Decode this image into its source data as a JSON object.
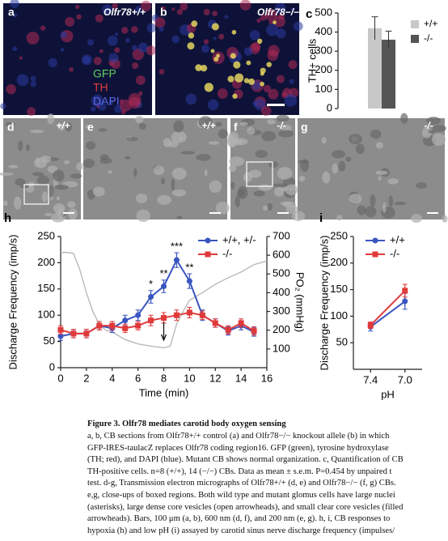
{
  "panels": [
    {
      "letter": "a",
      "label": "Olfr78+/+"
    },
    {
      "letter": "b",
      "label": "Olfr78−/−"
    },
    {
      "letter": "d",
      "label": "+/+"
    },
    {
      "letter": "e",
      "label": "+/+"
    },
    {
      "letter": "f",
      "label": "-/-"
    },
    {
      "letter": "g",
      "label": "-/-"
    }
  ],
  "stain_legend": [
    {
      "text": "GFP",
      "color": "#5fd05f"
    },
    {
      "text": "TH",
      "color": "#e03a3a"
    },
    {
      "text": "DAPI",
      "color": "#5a6ae8"
    }
  ],
  "chart_data": [
    {
      "type": "bar",
      "panel": "c",
      "ylabel": "TH+ cells",
      "ylim": [
        0,
        500
      ],
      "yticks": [
        0,
        100,
        200,
        300,
        400,
        500
      ],
      "series": [
        {
          "name": "+/+",
          "color": "#c8c8c8",
          "values": [
            420
          ],
          "errors": [
            60
          ]
        },
        {
          "name": "-/-",
          "color": "#555555",
          "values": [
            360
          ],
          "errors": [
            45
          ]
        }
      ]
    },
    {
      "type": "line",
      "panel": "h",
      "xlabel": "Time (min)",
      "ylabel": "Discharge Frequency (imp/s)",
      "y2label": "PO₂ (mmHg)",
      "x": [
        0,
        1,
        2,
        3,
        4,
        5,
        6,
        7,
        8,
        9,
        10,
        11,
        12,
        13,
        14,
        15
      ],
      "xlim": [
        0,
        16
      ],
      "xticks": [
        0,
        2,
        4,
        6,
        8,
        10,
        12,
        14,
        16
      ],
      "ylim": [
        0,
        250
      ],
      "yticks": [
        0,
        50,
        100,
        150,
        200,
        250
      ],
      "y2lim": [
        0,
        700
      ],
      "y2ticks": [
        100,
        200,
        300,
        400,
        500,
        600,
        700
      ],
      "series": [
        {
          "name": "+/+, +/-",
          "color": "#3a55c0",
          "marker": "circle",
          "values": [
            60,
            65,
            65,
            80,
            75,
            90,
            100,
            135,
            155,
            205,
            165,
            100,
            85,
            70,
            80,
            68
          ],
          "errors": [
            8,
            8,
            8,
            8,
            8,
            10,
            10,
            12,
            12,
            14,
            14,
            10,
            8,
            8,
            8,
            8
          ]
        },
        {
          "name": "-/-",
          "color": "#e03a3a",
          "marker": "square",
          "values": [
            72,
            65,
            65,
            80,
            80,
            75,
            80,
            90,
            95,
            100,
            105,
            100,
            85,
            72,
            85,
            70
          ],
          "errors": [
            8,
            8,
            8,
            8,
            8,
            8,
            8,
            10,
            10,
            10,
            10,
            8,
            8,
            8,
            8,
            8
          ]
        },
        {
          "color": "#b4b4b4",
          "axis": "y2",
          "x": [
            0,
            0.5,
            1,
            1.5,
            2,
            2.5,
            3,
            3.5,
            4,
            5,
            6,
            7,
            8,
            8.5,
            9,
            9.5,
            10,
            11,
            12,
            13,
            14,
            15,
            16
          ],
          "values": [
            615,
            615,
            610,
            520,
            400,
            300,
            230,
            200,
            190,
            150,
            127,
            115,
            106,
            115,
            233,
            300,
            360,
            400,
            445,
            480,
            510,
            550,
            570
          ]
        }
      ],
      "annotations": [
        {
          "text": "*",
          "x": 7
        },
        {
          "text": "**",
          "x": 8
        },
        {
          "text": "***",
          "x": 9
        },
        {
          "text": "**",
          "x": 10
        }
      ]
    },
    {
      "type": "line",
      "panel": "i",
      "xlabel": "pH",
      "ylabel": "Discharge Frequency (imp/s)",
      "categories": [
        "7.4",
        "7.0"
      ],
      "ylim": [
        0,
        250
      ],
      "yticks": [
        50,
        100,
        150,
        200,
        250
      ],
      "series": [
        {
          "name": "+/+",
          "color": "#3a55c0",
          "marker": "circle",
          "values": [
            80,
            128
          ],
          "errors": [
            8,
            15
          ]
        },
        {
          "name": "-/-",
          "color": "#e03a3a",
          "marker": "square",
          "values": [
            83,
            148
          ],
          "errors": [
            6,
            12
          ]
        }
      ]
    }
  ],
  "caption": {
    "title": "Figure 3. Olfr78 mediates carotid body oxygen sensing",
    "lines": [
      "a, b, CB sections from Olfr78+/+ control (a) and Olfr78−/− knockout allele (b) in which",
      "GFP-IRES-taulacZ replaces Olfr78 coding region16. GFP (green), tyrosine hydroxylase",
      "(TH; red), and DAPI (blue). Mutant CB shows normal organization. c, Quantification of CB",
      "TH-positive cells. n=8 (+/+), 14 (−/−) CBs. Data as mean ± s.e.m. P=0.454 by unpaired t",
      "test. d-g, Transmission electron micrographs of Olfr78+/+ (d, e) and Olfr78−/− (f, g) CBs.",
      "e,g, close-ups of boxed regions. Both wild type and mutant glomus cells have large nuclei",
      "(asterisks), large dense core vesicles (open arrowheads), and small clear core vesicles (filled",
      "arrowheads). Bars, 100 μm (a, b), 600 nm (d, f), and 200 nm (e, g). h, i, CB responses to",
      "hypoxia (h) and low pH (i) assayed by carotid sinus nerve discharge frequency (impulses/"
    ]
  }
}
